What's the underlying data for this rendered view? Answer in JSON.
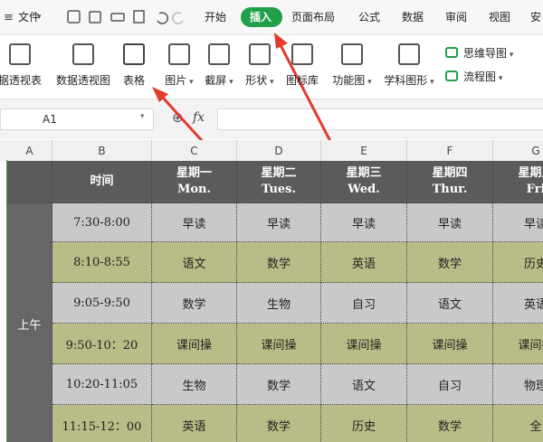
{
  "menu": {
    "file": "文件",
    "tabs": [
      "开始",
      "插入",
      "页面布局",
      "公式",
      "数据",
      "审阅",
      "视图",
      "安"
    ]
  },
  "ribbon": {
    "items": [
      "据透视表",
      "数据透视图",
      "表格",
      "图片",
      "截屏",
      "形状",
      "图标库",
      "功能图",
      "学科图形"
    ],
    "side": [
      "思维导图",
      "流程图"
    ]
  },
  "formula_bar": {
    "cell_ref": "A1",
    "fx": "fx"
  },
  "columns": [
    "A",
    "B",
    "C",
    "D",
    "E",
    "F",
    "G"
  ],
  "table": {
    "header": [
      {
        "day": "时间"
      },
      {
        "day": "星期一",
        "en": "Mon."
      },
      {
        "day": "星期二",
        "en": "Tues."
      },
      {
        "day": "星期三",
        "en": "Wed."
      },
      {
        "day": "星期四",
        "en": "Thur."
      },
      {
        "day": "星期五",
        "en": "Fri"
      }
    ],
    "group": "上午",
    "rows": [
      [
        "7:30-8:00",
        "早读",
        "早读",
        "早读",
        "早读",
        "早读"
      ],
      [
        "8:10-8:55",
        "语文",
        "数学",
        "英语",
        "数学",
        "历史"
      ],
      [
        "9:05-9:50",
        "数学",
        "生物",
        "自习",
        "语文",
        "英语"
      ],
      [
        "9:50-10：20",
        "课间操",
        "课间操",
        "课间操",
        "课间操",
        "课间操"
      ],
      [
        "10:20-11:05",
        "生物",
        "数学",
        "语文",
        "自习",
        "物理"
      ],
      [
        "11:15-12：00",
        "英语",
        "数学",
        "历史",
        "数学",
        "全"
      ]
    ]
  }
}
